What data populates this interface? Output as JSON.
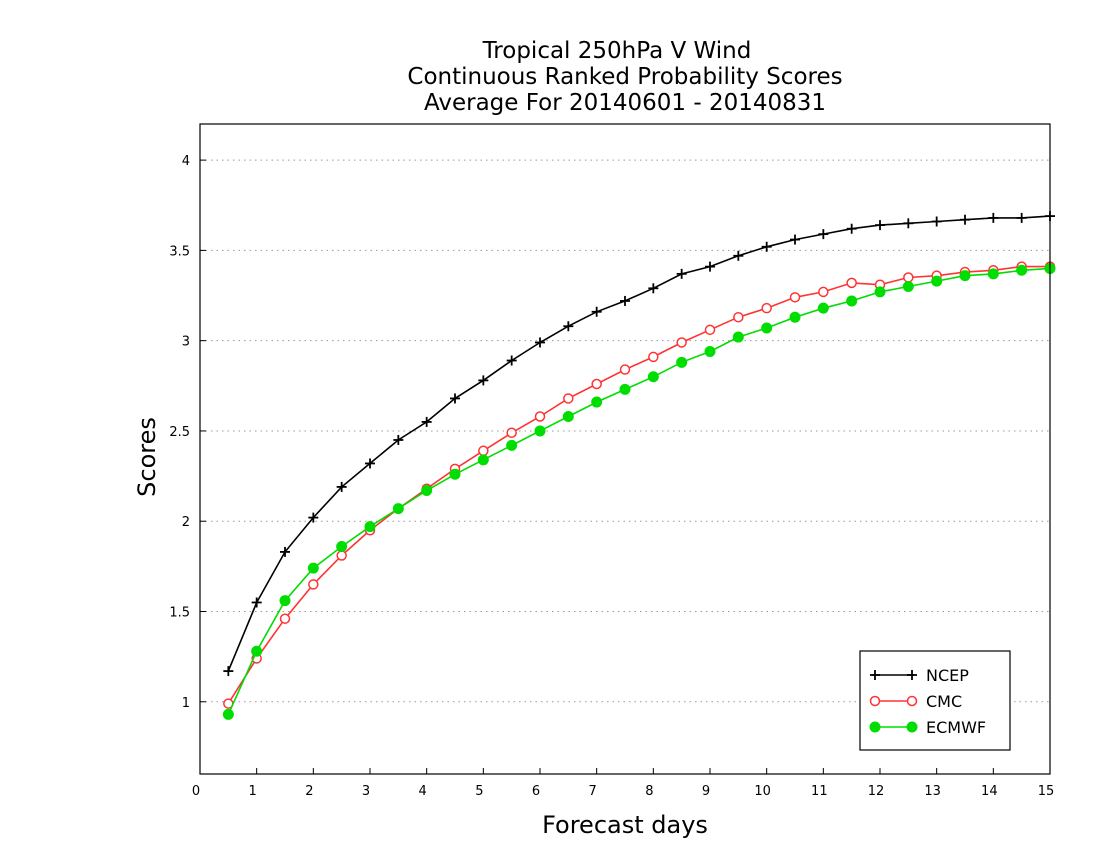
{
  "chart_data": {
    "type": "line",
    "title": [
      "Tropical 250hPa V Wind",
      "Continuous Ranked Probability Scores",
      "Average For 20140601 - 20140831"
    ],
    "xlabel": "Forecast days",
    "ylabel": "Scores",
    "xlim": [
      0,
      15
    ],
    "ylim": [
      0.6,
      4.2
    ],
    "xticks": [
      0,
      1,
      2,
      3,
      4,
      5,
      6,
      7,
      8,
      9,
      10,
      11,
      12,
      13,
      14,
      15
    ],
    "yticks": [
      1,
      1.5,
      2,
      2.5,
      3,
      3.5,
      4
    ],
    "grid": "horizontal-dotted",
    "legend_position": "bottom-right",
    "x": [
      0.5,
      1,
      1.5,
      2,
      2.5,
      3,
      3.5,
      4,
      4.5,
      5,
      5.5,
      6,
      6.5,
      7,
      7.5,
      8,
      8.5,
      9,
      9.5,
      10,
      10.5,
      11,
      11.5,
      12,
      12.5,
      13,
      13.5,
      14,
      14.5,
      15
    ],
    "series": [
      {
        "name": "NCEP",
        "color": "#000000",
        "marker": "plus",
        "values": [
          1.17,
          1.55,
          1.83,
          2.02,
          2.19,
          2.32,
          2.45,
          2.55,
          2.68,
          2.78,
          2.89,
          2.99,
          3.08,
          3.16,
          3.22,
          3.29,
          3.37,
          3.41,
          3.47,
          3.52,
          3.56,
          3.59,
          3.62,
          3.64,
          3.65,
          3.66,
          3.67,
          3.68,
          3.68,
          3.69
        ]
      },
      {
        "name": "CMC",
        "color": "#ff3333",
        "marker": "open-circle",
        "values": [
          0.99,
          1.24,
          1.46,
          1.65,
          1.81,
          1.95,
          2.07,
          2.18,
          2.29,
          2.39,
          2.49,
          2.58,
          2.68,
          2.76,
          2.84,
          2.91,
          2.99,
          3.06,
          3.13,
          3.18,
          3.24,
          3.27,
          3.32,
          3.31,
          3.35,
          3.36,
          3.38,
          3.39,
          3.41,
          3.41
        ]
      },
      {
        "name": "ECMWF",
        "color": "#00dd00",
        "marker": "filled-circle",
        "values": [
          0.93,
          1.28,
          1.56,
          1.74,
          1.86,
          1.97,
          2.07,
          2.17,
          2.26,
          2.34,
          2.42,
          2.5,
          2.58,
          2.66,
          2.73,
          2.8,
          2.88,
          2.94,
          3.02,
          3.07,
          3.13,
          3.18,
          3.22,
          3.27,
          3.3,
          3.33,
          3.36,
          3.37,
          3.39,
          3.4
        ]
      }
    ]
  }
}
